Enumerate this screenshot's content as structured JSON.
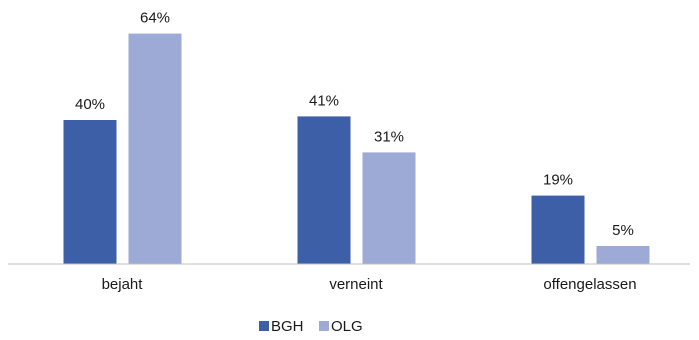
{
  "chart_data": {
    "type": "bar",
    "categories": [
      "bejaht",
      "verneint",
      "offengelassen"
    ],
    "series": [
      {
        "name": "BGH",
        "values": [
          40,
          41,
          19
        ],
        "labels": [
          "40%",
          "41%",
          "19%"
        ],
        "color": "#3c5fa8"
      },
      {
        "name": "OLG",
        "values": [
          64,
          31,
          5
        ],
        "labels": [
          "64%",
          "31%",
          "5%"
        ],
        "color": "#9eaad6"
      }
    ],
    "unit": "%",
    "ylim": [
      0,
      70
    ],
    "grid": false,
    "legend": "bottom-center",
    "axis_color": "#bfbfbf"
  }
}
